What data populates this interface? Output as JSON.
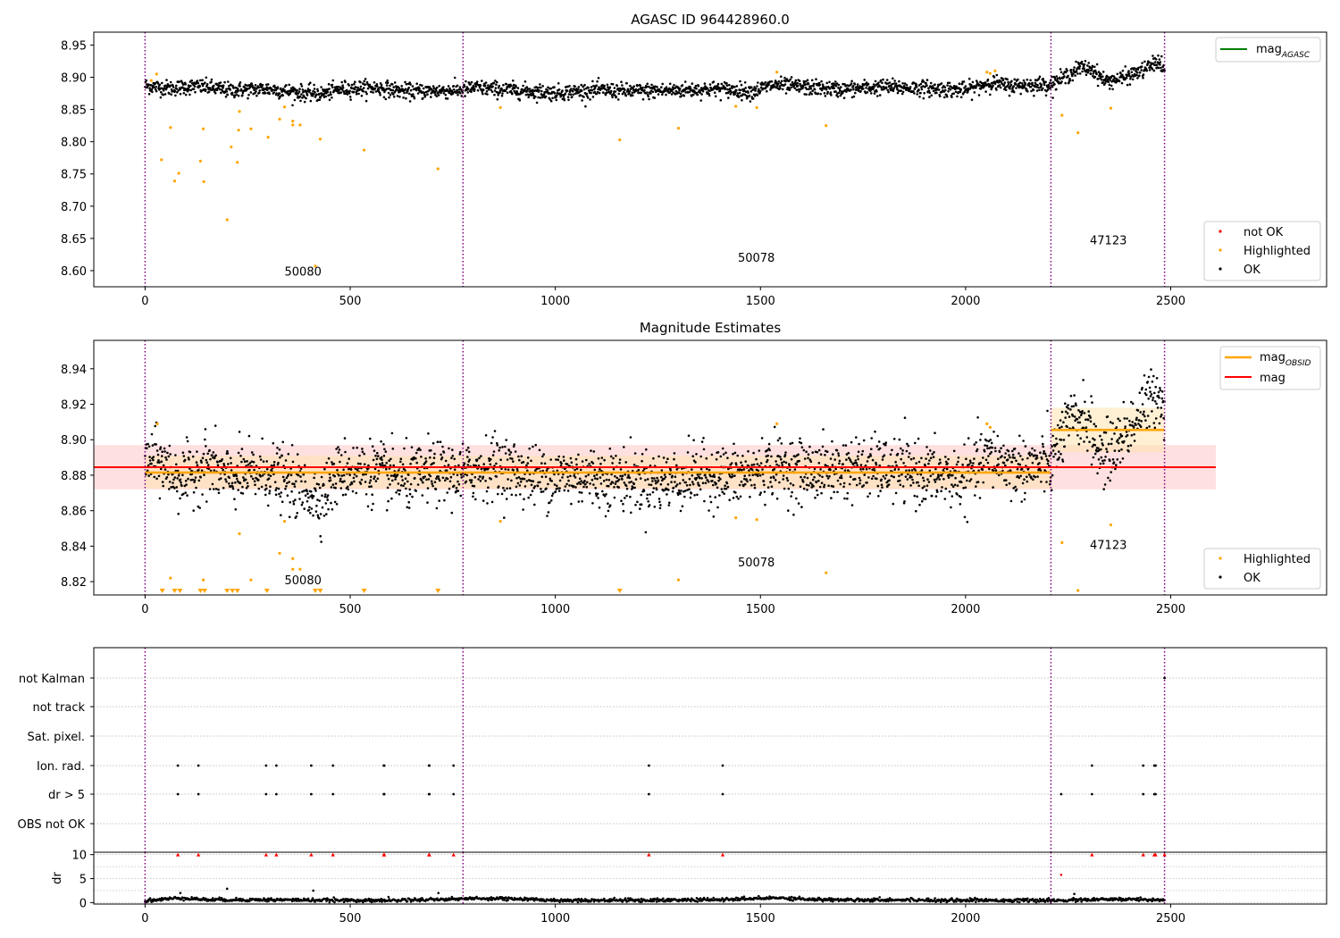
{
  "figure": {
    "title_top": "AGASC ID 964428960.0",
    "title_mid": "Magnitude Estimates"
  },
  "colors": {
    "ok": "#000000",
    "highlighted": "#ffa500",
    "not_ok": "#ff0000",
    "mag_agasc": "#008000",
    "mag_obsid": "#ffa500",
    "mag": "#ff0000",
    "obs_boundary": "#800080",
    "band_mag": "#ffcccc",
    "band_obsid": "#ffe4b0"
  },
  "chart_data": [
    {
      "type": "scatter",
      "title": "AGASC ID 964428960.0",
      "xlim": [
        -125,
        2880
      ],
      "ylim": [
        8.575,
        8.97
      ],
      "xticks": [
        0,
        500,
        1000,
        1500,
        2000,
        2500
      ],
      "yticks": [
        8.6,
        8.65,
        8.7,
        8.75,
        8.8,
        8.85,
        8.9,
        8.95
      ],
      "ytick_labels": [
        "8.60",
        "8.65",
        "8.70",
        "8.75",
        "8.80",
        "8.85",
        "8.90",
        "8.95"
      ],
      "obs_boundaries": [
        0,
        775,
        2208,
        2485
      ],
      "obs_labels": [
        {
          "text": "50080",
          "x": 385,
          "y": 8.592
        },
        {
          "text": "50078",
          "x": 1490,
          "y": 8.614
        },
        {
          "text": "47123",
          "x": 2348,
          "y": 8.641
        }
      ],
      "legend_upper": {
        "position": "upper right",
        "entries": [
          {
            "label": "mag",
            "sub": "AGASC"
          }
        ]
      },
      "legend_lower": {
        "position": "lower right",
        "entries": [
          "not OK",
          "Highlighted",
          "OK"
        ]
      },
      "ok_trend": [
        [
          0,
          8.887
        ],
        [
          60,
          8.883
        ],
        [
          120,
          8.886
        ],
        [
          160,
          8.884
        ],
        [
          200,
          8.88
        ],
        [
          300,
          8.882
        ],
        [
          380,
          8.876
        ],
        [
          430,
          8.874
        ],
        [
          480,
          8.882
        ],
        [
          560,
          8.884
        ],
        [
          640,
          8.878
        ],
        [
          775,
          8.88
        ],
        [
          800,
          8.884
        ],
        [
          900,
          8.88
        ],
        [
          1000,
          8.876
        ],
        [
          1100,
          8.88
        ],
        [
          1200,
          8.878
        ],
        [
          1300,
          8.88
        ],
        [
          1400,
          8.882
        ],
        [
          1480,
          8.878
        ],
        [
          1530,
          8.888
        ],
        [
          1600,
          8.885
        ],
        [
          1700,
          8.881
        ],
        [
          1800,
          8.885
        ],
        [
          1900,
          8.883
        ],
        [
          2000,
          8.88
        ],
        [
          2060,
          8.892
        ],
        [
          2100,
          8.887
        ],
        [
          2208,
          8.889
        ],
        [
          2240,
          8.9
        ],
        [
          2280,
          8.915
        ],
        [
          2310,
          8.912
        ],
        [
          2340,
          8.894
        ],
        [
          2380,
          8.898
        ],
        [
          2430,
          8.91
        ],
        [
          2470,
          8.925
        ],
        [
          2485,
          8.908
        ]
      ],
      "ok_spread": 0.006,
      "ok_points_count": 2420,
      "highlighted_points": [
        [
          15,
          8.895
        ],
        [
          28,
          8.905
        ],
        [
          40,
          8.772
        ],
        [
          62,
          8.822
        ],
        [
          72,
          8.739
        ],
        [
          82,
          8.751
        ],
        [
          135,
          8.77
        ],
        [
          142,
          8.82
        ],
        [
          143,
          8.738
        ],
        [
          200,
          8.679
        ],
        [
          210,
          8.792
        ],
        [
          225,
          8.768
        ],
        [
          228,
          8.818
        ],
        [
          230,
          8.847
        ],
        [
          258,
          8.82
        ],
        [
          300,
          8.807
        ],
        [
          328,
          8.835
        ],
        [
          340,
          8.854
        ],
        [
          360,
          8.832
        ],
        [
          360,
          8.826
        ],
        [
          378,
          8.826
        ],
        [
          415,
          8.607
        ],
        [
          427,
          8.804
        ],
        [
          534,
          8.787
        ],
        [
          714,
          8.758
        ],
        [
          866,
          8.853
        ],
        [
          1157,
          8.803
        ],
        [
          1300,
          8.821
        ],
        [
          1440,
          8.855
        ],
        [
          1491,
          8.853
        ],
        [
          1540,
          8.908
        ],
        [
          1660,
          8.825
        ],
        [
          2052,
          8.908
        ],
        [
          2060,
          8.906
        ],
        [
          2072,
          8.91
        ],
        [
          2235,
          8.841
        ],
        [
          2274,
          8.814
        ],
        [
          2354,
          8.852
        ]
      ],
      "not_ok_points": []
    },
    {
      "type": "scatter",
      "title": "Magnitude Estimates",
      "xlim": [
        -125,
        2880
      ],
      "ylim": [
        8.8125,
        8.956
      ],
      "xticks": [
        0,
        500,
        1000,
        1500,
        2000,
        2500
      ],
      "yticks": [
        8.82,
        8.84,
        8.86,
        8.88,
        8.9,
        8.92,
        8.94
      ],
      "ytick_labels": [
        "8.82",
        "8.84",
        "8.86",
        "8.88",
        "8.90",
        "8.92",
        "8.94"
      ],
      "obs_boundaries": [
        0,
        775,
        2208,
        2485
      ],
      "obs_labels": [
        {
          "text": "50080",
          "x": 385,
          "y": 8.8185
        },
        {
          "text": "50078",
          "x": 1490,
          "y": 8.8285
        },
        {
          "text": "47123",
          "x": 2348,
          "y": 8.8385
        }
      ],
      "legend_upper": {
        "position": "upper right",
        "entries": [
          {
            "label": "mag",
            "sub": "OBSID"
          },
          {
            "label": "mag",
            "sub": ""
          }
        ]
      },
      "legend_lower": {
        "position": "lower right",
        "entries": [
          "Highlighted",
          "OK"
        ]
      },
      "mag": {
        "value": 8.8845,
        "x": [
          -125,
          2610
        ],
        "band": [
          8.872,
          8.897
        ]
      },
      "mag_obsid": [
        {
          "x": [
            0,
            2208
          ],
          "value": 8.8815,
          "band": [
            8.8725,
            8.891
          ]
        },
        {
          "x": [
            2208,
            2485
          ],
          "value": 8.9055,
          "band": [
            8.893,
            8.918
          ]
        }
      ],
      "ok_trend": [
        [
          0,
          8.889
        ],
        [
          40,
          8.887
        ],
        [
          70,
          8.88
        ],
        [
          100,
          8.878
        ],
        [
          150,
          8.887
        ],
        [
          200,
          8.878
        ],
        [
          300,
          8.882
        ],
        [
          380,
          8.872
        ],
        [
          430,
          8.868
        ],
        [
          480,
          8.883
        ],
        [
          560,
          8.882
        ],
        [
          640,
          8.877
        ],
        [
          700,
          8.882
        ],
        [
          775,
          8.88
        ],
        [
          850,
          8.886
        ],
        [
          950,
          8.879
        ],
        [
          1050,
          8.88
        ],
        [
          1150,
          8.878
        ],
        [
          1250,
          8.876
        ],
        [
          1350,
          8.88
        ],
        [
          1450,
          8.879
        ],
        [
          1530,
          8.885
        ],
        [
          1620,
          8.882
        ],
        [
          1720,
          8.884
        ],
        [
          1820,
          8.883
        ],
        [
          1920,
          8.88
        ],
        [
          2000,
          8.878
        ],
        [
          2060,
          8.891
        ],
        [
          2120,
          8.884
        ],
        [
          2208,
          8.886
        ],
        [
          2240,
          8.905
        ],
        [
          2290,
          8.914
        ],
        [
          2330,
          8.89
        ],
        [
          2360,
          8.895
        ],
        [
          2420,
          8.913
        ],
        [
          2470,
          8.928
        ],
        [
          2485,
          8.915
        ]
      ],
      "ok_spread": 0.0085,
      "ok_points_count": 2420,
      "highlighted_points": [
        [
          30,
          8.909
        ],
        [
          62,
          8.822
        ],
        [
          142,
          8.821
        ],
        [
          230,
          8.847
        ],
        [
          258,
          8.821
        ],
        [
          328,
          8.836
        ],
        [
          340,
          8.854
        ],
        [
          360,
          8.833
        ],
        [
          360,
          8.827
        ],
        [
          378,
          8.827
        ],
        [
          866,
          8.854
        ],
        [
          1300,
          8.821
        ],
        [
          1440,
          8.856
        ],
        [
          1491,
          8.855
        ],
        [
          1540,
          8.909
        ],
        [
          1660,
          8.825
        ],
        [
          2052,
          8.909
        ],
        [
          2060,
          8.907
        ],
        [
          2235,
          8.842
        ],
        [
          2274,
          8.815
        ],
        [
          2354,
          8.852
        ]
      ],
      "highlighted_offscale_x": [
        42,
        72,
        85,
        135,
        145,
        200,
        213,
        225,
        297,
        415,
        427,
        534,
        714,
        1157
      ]
    },
    {
      "type": "scatter",
      "title": "",
      "xlim": [
        -125,
        2880
      ],
      "xticks": [
        0,
        500,
        1000,
        1500,
        2000,
        2500
      ],
      "flag_rows": [
        "not Kalman",
        "not track",
        "Sat. pixel.",
        "Ion. rad.",
        "dr > 5",
        "OBS not OK"
      ],
      "obs_boundaries": [
        0,
        775,
        2208,
        2485
      ],
      "flags": {
        "not Kalman": [
          2485
        ],
        "not track": [],
        "Sat. pixel.": [],
        "Ion. rad.": [
          80,
          130,
          295,
          320,
          405,
          458,
          582,
          583,
          692,
          693,
          752,
          1228,
          1408,
          2308,
          2433,
          2460,
          2463
        ],
        "dr > 5": [
          80,
          130,
          295,
          320,
          405,
          458,
          582,
          583,
          692,
          693,
          752,
          1228,
          1408,
          2233,
          2308,
          2433,
          2460,
          2463
        ],
        "OBS not OK": []
      }
    },
    {
      "type": "scatter",
      "title": "",
      "ylabel": "dr",
      "xlim": [
        -125,
        2880
      ],
      "ylim": [
        -0.3,
        10.5
      ],
      "xticks": [
        0,
        500,
        1000,
        1500,
        2000,
        2500
      ],
      "yticks": [
        0,
        5,
        10
      ],
      "ytick_labels": [
        "0",
        "5",
        "10"
      ],
      "obs_boundaries": [
        0,
        775,
        2208,
        2485
      ],
      "dr_clipped_x": [
        80,
        130,
        295,
        320,
        405,
        458,
        582,
        583,
        692,
        693,
        752,
        1228,
        1408,
        2308,
        2433,
        2460,
        2463,
        2485
      ],
      "dr_outliers": [
        [
          2233,
          5.8
        ],
        [
          200,
          2.9
        ],
        [
          410,
          2.5
        ],
        [
          86,
          2.0
        ],
        [
          715,
          2.0
        ],
        [
          2265,
          1.8
        ]
      ],
      "dr_trend": [
        [
          0,
          0.4
        ],
        [
          60,
          0.8
        ],
        [
          90,
          1.0
        ],
        [
          150,
          0.6
        ],
        [
          300,
          0.6
        ],
        [
          450,
          0.5
        ],
        [
          600,
          0.5
        ],
        [
          775,
          0.8
        ],
        [
          850,
          0.9
        ],
        [
          1000,
          0.5
        ],
        [
          1200,
          0.5
        ],
        [
          1400,
          0.6
        ],
        [
          1550,
          1.0
        ],
        [
          1650,
          0.6
        ],
        [
          1800,
          0.6
        ],
        [
          2000,
          0.5
        ],
        [
          2100,
          0.5
        ],
        [
          2208,
          0.4
        ],
        [
          2300,
          0.6
        ],
        [
          2400,
          0.7
        ],
        [
          2485,
          0.6
        ]
      ],
      "dr_points_count": 1400
    }
  ]
}
